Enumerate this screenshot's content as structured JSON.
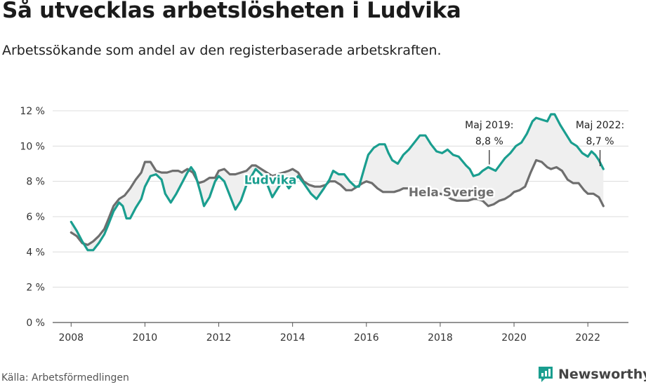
{
  "title": "Så utvecklas arbetslösheten i Ludvika",
  "subtitle": "Arbetssökande som andel av den registerbaserade arbetskraften.",
  "source": "Källa: Arbetsförmedlingen",
  "brand": "Newsworthy",
  "colors": {
    "ludvika": "#1a9e8f",
    "sverige": "#6e6e6e",
    "fill": "#efefef",
    "grid": "#dcdcdc"
  },
  "chart_data": {
    "type": "line",
    "title": "Så utvecklas arbetslösheten i Ludvika",
    "subtitle": "Arbetssökande som andel av den registerbaserade arbetskraften.",
    "xlabel": "",
    "ylabel": "",
    "xlim": [
      2007.5,
      2023.1
    ],
    "ylim": [
      0,
      12
    ],
    "x_ticks": [
      "2008",
      "2010",
      "2012",
      "2014",
      "2016",
      "2018",
      "2020",
      "2022"
    ],
    "y_ticks": [
      "0 %",
      "2 %",
      "4 %",
      "6 %",
      "8 %",
      "10 %",
      "12 %"
    ],
    "grid": true,
    "legend": "inline labels",
    "series": [
      {
        "name": "Ludvika",
        "points": [
          [
            2008.0,
            5.7
          ],
          [
            2008.15,
            5.2
          ],
          [
            2008.3,
            4.6
          ],
          [
            2008.45,
            4.1
          ],
          [
            2008.6,
            4.1
          ],
          [
            2008.75,
            4.5
          ],
          [
            2008.9,
            5.0
          ],
          [
            2009.0,
            5.5
          ],
          [
            2009.15,
            6.3
          ],
          [
            2009.3,
            6.8
          ],
          [
            2009.4,
            6.6
          ],
          [
            2009.5,
            5.9
          ],
          [
            2009.6,
            5.9
          ],
          [
            2009.75,
            6.5
          ],
          [
            2009.9,
            7.0
          ],
          [
            2010.0,
            7.7
          ],
          [
            2010.15,
            8.3
          ],
          [
            2010.3,
            8.4
          ],
          [
            2010.45,
            8.1
          ],
          [
            2010.55,
            7.3
          ],
          [
            2010.7,
            6.8
          ],
          [
            2010.85,
            7.3
          ],
          [
            2011.0,
            7.9
          ],
          [
            2011.15,
            8.5
          ],
          [
            2011.25,
            8.8
          ],
          [
            2011.35,
            8.5
          ],
          [
            2011.5,
            7.4
          ],
          [
            2011.6,
            6.6
          ],
          [
            2011.75,
            7.1
          ],
          [
            2011.9,
            8.0
          ],
          [
            2012.0,
            8.3
          ],
          [
            2012.15,
            8.0
          ],
          [
            2012.3,
            7.2
          ],
          [
            2012.45,
            6.4
          ],
          [
            2012.6,
            6.9
          ],
          [
            2012.75,
            7.8
          ],
          [
            2013.0,
            8.7
          ],
          [
            2013.15,
            8.4
          ],
          [
            2013.3,
            7.9
          ],
          [
            2013.45,
            7.1
          ],
          [
            2013.6,
            7.6
          ],
          [
            2013.75,
            8.1
          ],
          [
            2013.9,
            7.6
          ],
          [
            2014.0,
            7.9
          ],
          [
            2014.15,
            8.3
          ],
          [
            2014.3,
            7.9
          ],
          [
            2014.5,
            7.3
          ],
          [
            2014.65,
            7.0
          ],
          [
            2014.85,
            7.6
          ],
          [
            2015.0,
            8.1
          ],
          [
            2015.1,
            8.6
          ],
          [
            2015.25,
            8.4
          ],
          [
            2015.4,
            8.4
          ],
          [
            2015.55,
            8.0
          ],
          [
            2015.7,
            7.7
          ],
          [
            2015.8,
            7.7
          ],
          [
            2015.95,
            8.8
          ],
          [
            2016.05,
            9.5
          ],
          [
            2016.2,
            9.9
          ],
          [
            2016.35,
            10.1
          ],
          [
            2016.5,
            10.1
          ],
          [
            2016.6,
            9.6
          ],
          [
            2016.7,
            9.2
          ],
          [
            2016.85,
            9.0
          ],
          [
            2017.0,
            9.5
          ],
          [
            2017.15,
            9.8
          ],
          [
            2017.3,
            10.2
          ],
          [
            2017.45,
            10.6
          ],
          [
            2017.6,
            10.6
          ],
          [
            2017.75,
            10.1
          ],
          [
            2017.9,
            9.7
          ],
          [
            2018.05,
            9.6
          ],
          [
            2018.2,
            9.8
          ],
          [
            2018.35,
            9.5
          ],
          [
            2018.5,
            9.4
          ],
          [
            2018.7,
            8.9
          ],
          [
            2018.8,
            8.7
          ],
          [
            2018.9,
            8.3
          ],
          [
            2019.05,
            8.4
          ],
          [
            2019.15,
            8.6
          ],
          [
            2019.3,
            8.8
          ],
          [
            2019.5,
            8.6
          ],
          [
            2019.75,
            9.3
          ],
          [
            2019.9,
            9.6
          ],
          [
            2020.05,
            10.0
          ],
          [
            2020.2,
            10.2
          ],
          [
            2020.35,
            10.7
          ],
          [
            2020.5,
            11.4
          ],
          [
            2020.6,
            11.6
          ],
          [
            2020.75,
            11.5
          ],
          [
            2020.9,
            11.4
          ],
          [
            2021.0,
            11.8
          ],
          [
            2021.1,
            11.8
          ],
          [
            2021.25,
            11.2
          ],
          [
            2021.4,
            10.7
          ],
          [
            2021.55,
            10.2
          ],
          [
            2021.7,
            10.0
          ],
          [
            2021.85,
            9.6
          ],
          [
            2022.0,
            9.4
          ],
          [
            2022.1,
            9.7
          ],
          [
            2022.2,
            9.5
          ],
          [
            2022.3,
            9.2
          ],
          [
            2022.42,
            8.7
          ]
        ]
      },
      {
        "name": "Hela Sverige",
        "points": [
          [
            2008.0,
            5.1
          ],
          [
            2008.15,
            4.9
          ],
          [
            2008.3,
            4.5
          ],
          [
            2008.45,
            4.4
          ],
          [
            2008.6,
            4.6
          ],
          [
            2008.75,
            4.9
          ],
          [
            2008.9,
            5.3
          ],
          [
            2009.0,
            5.8
          ],
          [
            2009.15,
            6.6
          ],
          [
            2009.3,
            7.0
          ],
          [
            2009.45,
            7.2
          ],
          [
            2009.6,
            7.6
          ],
          [
            2009.75,
            8.1
          ],
          [
            2009.9,
            8.5
          ],
          [
            2010.0,
            9.1
          ],
          [
            2010.15,
            9.1
          ],
          [
            2010.3,
            8.6
          ],
          [
            2010.45,
            8.5
          ],
          [
            2010.6,
            8.5
          ],
          [
            2010.75,
            8.6
          ],
          [
            2010.9,
            8.6
          ],
          [
            2011.0,
            8.5
          ],
          [
            2011.15,
            8.7
          ],
          [
            2011.3,
            8.5
          ],
          [
            2011.45,
            7.9
          ],
          [
            2011.6,
            8.0
          ],
          [
            2011.75,
            8.2
          ],
          [
            2011.9,
            8.2
          ],
          [
            2012.0,
            8.6
          ],
          [
            2012.15,
            8.7
          ],
          [
            2012.3,
            8.4
          ],
          [
            2012.45,
            8.4
          ],
          [
            2012.6,
            8.5
          ],
          [
            2012.75,
            8.6
          ],
          [
            2012.9,
            8.9
          ],
          [
            2013.0,
            8.9
          ],
          [
            2013.15,
            8.7
          ],
          [
            2013.3,
            8.5
          ],
          [
            2013.45,
            8.3
          ],
          [
            2013.6,
            8.4
          ],
          [
            2013.75,
            8.5
          ],
          [
            2013.9,
            8.6
          ],
          [
            2014.0,
            8.7
          ],
          [
            2014.15,
            8.5
          ],
          [
            2014.3,
            8.0
          ],
          [
            2014.45,
            7.8
          ],
          [
            2014.6,
            7.7
          ],
          [
            2014.75,
            7.7
          ],
          [
            2014.9,
            7.8
          ],
          [
            2015.0,
            8.0
          ],
          [
            2015.15,
            8.0
          ],
          [
            2015.3,
            7.8
          ],
          [
            2015.45,
            7.5
          ],
          [
            2015.6,
            7.5
          ],
          [
            2015.75,
            7.7
          ],
          [
            2015.9,
            7.9
          ],
          [
            2016.0,
            8.0
          ],
          [
            2016.15,
            7.9
          ],
          [
            2016.3,
            7.6
          ],
          [
            2016.45,
            7.4
          ],
          [
            2016.6,
            7.4
          ],
          [
            2016.75,
            7.4
          ],
          [
            2016.9,
            7.5
          ],
          [
            2017.0,
            7.6
          ],
          [
            2017.15,
            7.6
          ],
          [
            2017.3,
            7.3
          ],
          [
            2017.45,
            7.2
          ],
          [
            2017.6,
            7.2
          ],
          [
            2017.75,
            7.3
          ],
          [
            2017.9,
            7.3
          ],
          [
            2018.0,
            7.3
          ],
          [
            2018.15,
            7.2
          ],
          [
            2018.3,
            7.0
          ],
          [
            2018.45,
            6.9
          ],
          [
            2018.6,
            6.9
          ],
          [
            2018.75,
            6.9
          ],
          [
            2018.9,
            7.0
          ],
          [
            2019.0,
            7.0
          ],
          [
            2019.15,
            6.9
          ],
          [
            2019.3,
            6.6
          ],
          [
            2019.45,
            6.7
          ],
          [
            2019.6,
            6.9
          ],
          [
            2019.75,
            7.0
          ],
          [
            2019.9,
            7.2
          ],
          [
            2020.0,
            7.4
          ],
          [
            2020.15,
            7.5
          ],
          [
            2020.3,
            7.7
          ],
          [
            2020.45,
            8.5
          ],
          [
            2020.6,
            9.2
          ],
          [
            2020.75,
            9.1
          ],
          [
            2020.9,
            8.8
          ],
          [
            2021.0,
            8.7
          ],
          [
            2021.15,
            8.8
          ],
          [
            2021.3,
            8.6
          ],
          [
            2021.45,
            8.1
          ],
          [
            2021.6,
            7.9
          ],
          [
            2021.75,
            7.9
          ],
          [
            2021.9,
            7.5
          ],
          [
            2022.0,
            7.3
          ],
          [
            2022.15,
            7.3
          ],
          [
            2022.3,
            7.1
          ],
          [
            2022.42,
            6.6
          ]
        ]
      }
    ],
    "annotations": [
      {
        "x": 2019.33,
        "y": 8.8,
        "line1": "Maj 2019:",
        "line2": "8,8 %"
      },
      {
        "x": 2022.33,
        "y": 8.7,
        "line1": "Maj 2022:",
        "line2": "8,7 %"
      }
    ]
  }
}
